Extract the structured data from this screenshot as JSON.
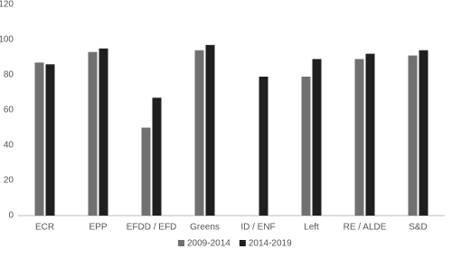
{
  "chart_data": {
    "type": "bar",
    "categories": [
      "ECR",
      "EPP",
      "EFDD / EFD",
      "Greens",
      "ID / ENF",
      "Left",
      "RE / ALDE",
      "S&D"
    ],
    "series": [
      {
        "name": "2009-2014",
        "color": "#707070",
        "values": [
          87,
          93,
          50,
          94,
          null,
          79,
          89,
          91
        ]
      },
      {
        "name": "2014-2019",
        "color": "#1f1f1f",
        "values": [
          86,
          95,
          67,
          97,
          79,
          89,
          92,
          94
        ]
      }
    ],
    "ylim": [
      0,
      120
    ],
    "yticks": [
      0,
      20,
      40,
      60,
      80,
      100,
      120
    ],
    "grid": false,
    "legend": "bottom"
  }
}
